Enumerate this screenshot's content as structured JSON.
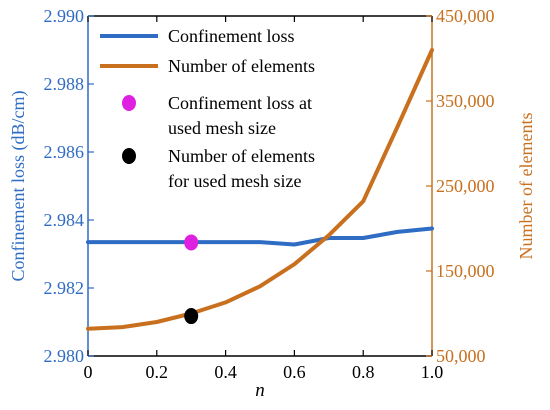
{
  "chart_data": {
    "type": "line",
    "title": "",
    "xlabel": "n",
    "ylabel_left": "Confinement loss (dB/cm)",
    "ylabel_right": "Number of elements",
    "xlim": [
      0,
      1.0
    ],
    "ylim_left": [
      2.98,
      2.99
    ],
    "ylim_right": [
      50000,
      450000
    ],
    "x_ticks": [
      "0",
      "0.2",
      "0.4",
      "0.6",
      "0.8",
      "1.0"
    ],
    "y_left_ticks": [
      "2.980",
      "2.982",
      "2.984",
      "2.986",
      "2.988",
      "2.990"
    ],
    "y_right_ticks": [
      "50,000",
      "150,000",
      "250,000",
      "350,000",
      "450,000"
    ],
    "grid": false,
    "legend_position": "top-left",
    "series": [
      {
        "name": "Confinement loss",
        "axis": "left",
        "color": "#2f6cc4",
        "x": [
          0,
          0.1,
          0.2,
          0.3,
          0.4,
          0.5,
          0.6,
          0.7,
          0.8,
          0.9,
          1.0
        ],
        "y": [
          2.98335,
          2.98335,
          2.98335,
          2.98335,
          2.98335,
          2.98335,
          2.98328,
          2.98347,
          2.98347,
          2.98365,
          2.98375
        ]
      },
      {
        "name": "Number of elements",
        "axis": "right",
        "color": "#c9701f",
        "x": [
          0,
          0.1,
          0.2,
          0.3,
          0.4,
          0.5,
          0.6,
          0.7,
          0.8,
          0.9,
          1.0
        ],
        "y": [
          82000,
          84000,
          90000,
          100000,
          113000,
          132000,
          158000,
          192000,
          232000,
          320000,
          410000
        ]
      }
    ],
    "markers": [
      {
        "name": "Confinement loss at used mesh size",
        "axis": "left",
        "color": "#e020e0",
        "x": 0.3,
        "y": 2.98334
      },
      {
        "name": "Number of elements for used mesh size",
        "axis": "right",
        "color": "#000000",
        "x": 0.3,
        "y": 97000
      }
    ],
    "legend": [
      {
        "label": "Confinement loss",
        "kind": "line",
        "color": "#2f6cc4"
      },
      {
        "label": "Number of elements",
        "kind": "line",
        "color": "#c9701f"
      },
      {
        "label_lines": [
          "Confinement loss at",
          "used mesh size"
        ],
        "kind": "dot",
        "color": "#e020e0"
      },
      {
        "label_lines": [
          "Number of elements",
          "for used mesh size"
        ],
        "kind": "dot",
        "color": "#000000"
      }
    ],
    "colors": {
      "left_axis": "#2f6cc4",
      "right_axis": "#c9701f",
      "bottom_axis": "#000000"
    }
  }
}
